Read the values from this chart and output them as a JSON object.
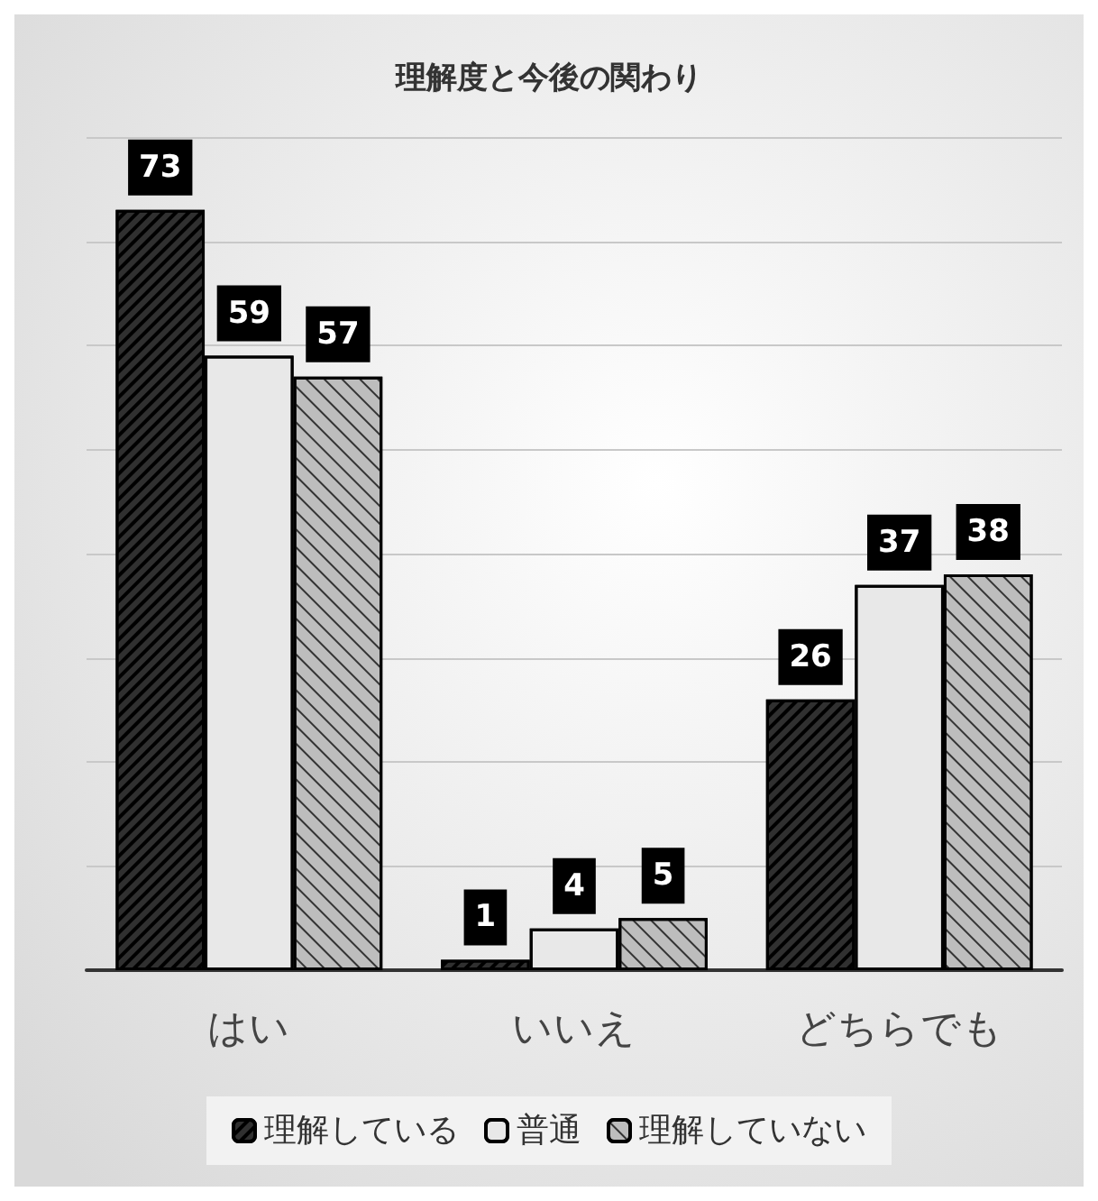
{
  "chart_data": {
    "type": "bar",
    "title": "理解度と今後の関わり",
    "categories": [
      "はい",
      "いいえ",
      "どちらでも"
    ],
    "series": [
      {
        "name": "理解している",
        "color": "#303030",
        "values": [
          73,
          1,
          26
        ]
      },
      {
        "name": "普通",
        "color": "#e8e8e8",
        "values": [
          59,
          4,
          37
        ]
      },
      {
        "name": "理解していない",
        "color": "#bdbdbd",
        "values": [
          57,
          5,
          38
        ]
      }
    ],
    "ylim": [
      0,
      80
    ],
    "yticks": [
      {
        "value": 0,
        "label": null
      },
      {
        "value": 10,
        "label": null
      },
      {
        "value": 20,
        "label": null
      },
      {
        "value": 30,
        "label": null
      },
      {
        "value": 40,
        "label": null
      },
      {
        "value": 50,
        "label": null
      },
      {
        "value": 60,
        "label": null
      },
      {
        "value": 70,
        "label": null
      },
      {
        "value": 80,
        "label": null
      }
    ],
    "tick_labels": "x",
    "grid": "y",
    "legend": "bottom",
    "data_labels": true
  }
}
